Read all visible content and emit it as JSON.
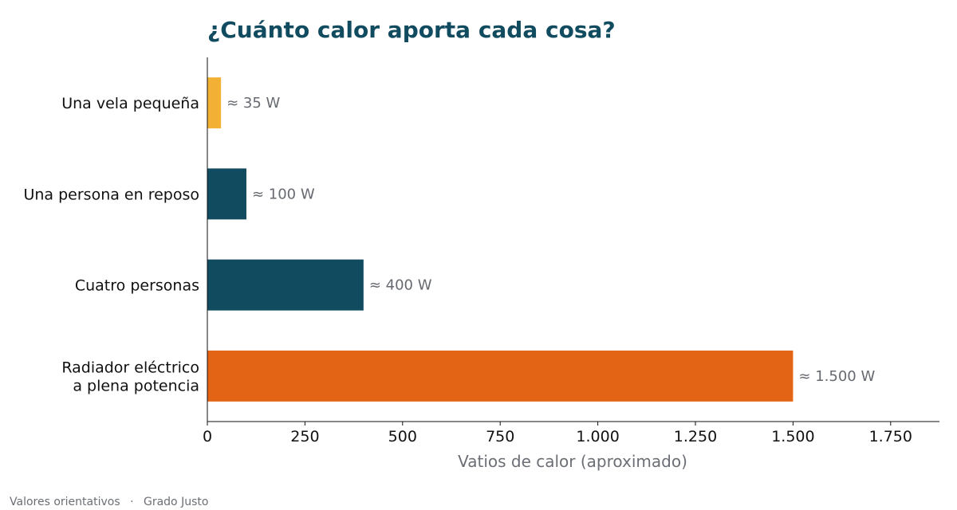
{
  "chart_data": {
    "type": "bar",
    "orientation": "horizontal",
    "title": "¿Cuánto calor aporta cada cosa?",
    "xlabel": "Vatios de calor (aproximado)",
    "ylabel": "",
    "xlim": [
      0,
      1875
    ],
    "xticks": [
      0,
      250,
      500,
      750,
      1000,
      1250,
      1500,
      1750
    ],
    "xtick_labels": [
      "0",
      "250",
      "500",
      "750",
      "1.000",
      "1.250",
      "1.500",
      "1.750"
    ],
    "categories": [
      [
        "Una vela pequeña"
      ],
      [
        "Una persona en reposo"
      ],
      [
        "Cuatro personas"
      ],
      [
        "Radiador eléctrico",
        "a plena potencia"
      ]
    ],
    "values": [
      35,
      100,
      400,
      1500
    ],
    "value_labels": [
      "≈ 35 W",
      "≈ 100 W",
      "≈ 400 W",
      "≈ 1.500 W"
    ],
    "colors": [
      "#F2B134",
      "#114B5F",
      "#114B5F",
      "#E36414"
    ],
    "grid": false,
    "legend": "none"
  },
  "footer": {
    "note": "Valores orientativos",
    "separator": "·",
    "brand": "Grado Justo"
  }
}
